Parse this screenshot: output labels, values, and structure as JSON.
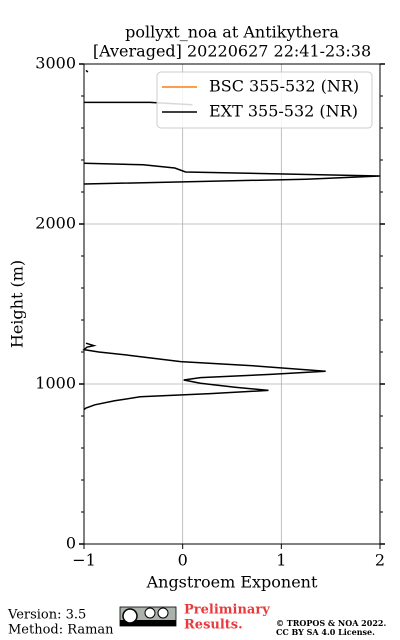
{
  "chart_data": {
    "type": "line",
    "title": [
      "pollyxt_noa at Antikythera",
      "[Averaged] 20220627 22:41-23:38"
    ],
    "xlabel": "Angstroem Exponent",
    "ylabel": "Height (m)",
    "y": [
      2960,
      2950,
      null,
      2760,
      2760,
      2745,
      null,
      2380,
      2370,
      2350,
      2325,
      2300,
      2280,
      2250,
      null,
      1255,
      1240,
      1230,
      1215,
      1200,
      1180,
      1140,
      1115,
      1080,
      1060,
      1040,
      1025,
      1005,
      980,
      960,
      940,
      920,
      895,
      870,
      850,
      840
    ],
    "series": [
      {
        "name": "BSC 355-532 (NR)",
        "color": "#ff7f0e",
        "values": [
          null,
          null,
          null,
          null,
          null,
          null,
          null,
          null,
          null,
          null,
          null,
          null,
          null,
          null,
          null,
          null,
          null,
          null,
          null,
          null,
          null,
          null,
          null,
          null,
          null,
          null,
          null,
          null,
          null,
          null,
          null,
          null,
          null,
          null,
          null,
          null
        ]
      },
      {
        "name": "EXT 355-532 (NR)",
        "color": "#000000",
        "values": [
          -0.98,
          -0.96,
          null,
          -1.0,
          -0.33,
          0.1,
          null,
          -1.0,
          -0.4,
          -0.08,
          0.03,
          2.0,
          1.25,
          -1.0,
          null,
          -0.98,
          -0.9,
          -0.97,
          -1.0,
          -0.85,
          -0.55,
          -0.02,
          0.69,
          1.45,
          0.89,
          0.18,
          0.01,
          0.18,
          0.53,
          0.87,
          0.28,
          -0.43,
          -0.69,
          -0.89,
          -0.98,
          -1.0
        ]
      }
    ],
    "xlim": [
      -1,
      2
    ],
    "ylim": [
      0,
      3000
    ],
    "xticks": [
      {
        "value": -1,
        "label": "−1"
      },
      0,
      1,
      2
    ],
    "yticks": [
      0,
      1000,
      2000,
      3000
    ],
    "yminorticks": [
      200,
      400,
      600,
      800,
      1200,
      1400,
      1600,
      1800,
      2200,
      2400,
      2600,
      2800
    ],
    "grid": true,
    "legend": "upper right"
  },
  "footer": {
    "version": "Version: 3.5",
    "method": "Method: Raman",
    "preliminary": [
      "Preliminary",
      "Results."
    ],
    "license": [
      "© TROPOS & NOA 2022.",
      "CC BY SA 4.0 License."
    ]
  }
}
